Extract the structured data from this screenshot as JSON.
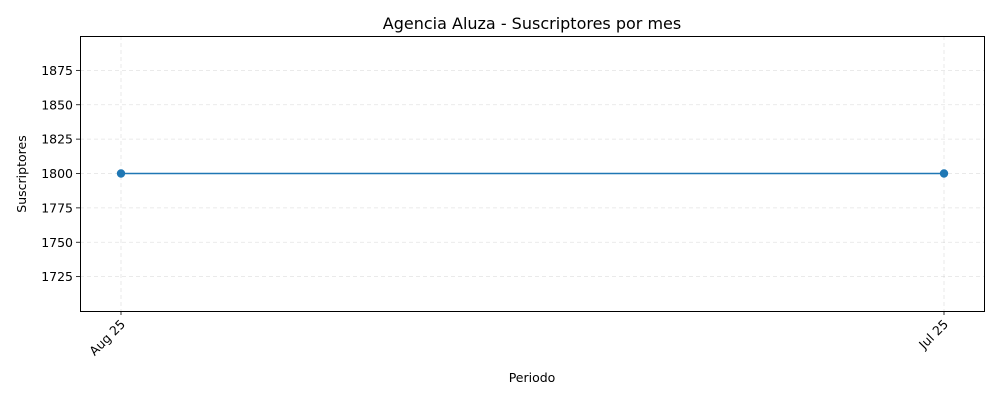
{
  "chart_data": {
    "type": "line",
    "title": "Agencia Aluza - Suscriptores por mes",
    "xlabel": "Periodo",
    "ylabel": "Suscriptores",
    "categories": [
      "Aug 25",
      "Jul 25"
    ],
    "series": [
      {
        "values": [
          1800,
          1800
        ],
        "color": "#1f77b4"
      }
    ],
    "ylim": [
      1700,
      1900
    ],
    "yticks": [
      1725,
      1750,
      1775,
      1800,
      1825,
      1850,
      1875
    ],
    "grid": true,
    "xtick_rotation": -45
  }
}
